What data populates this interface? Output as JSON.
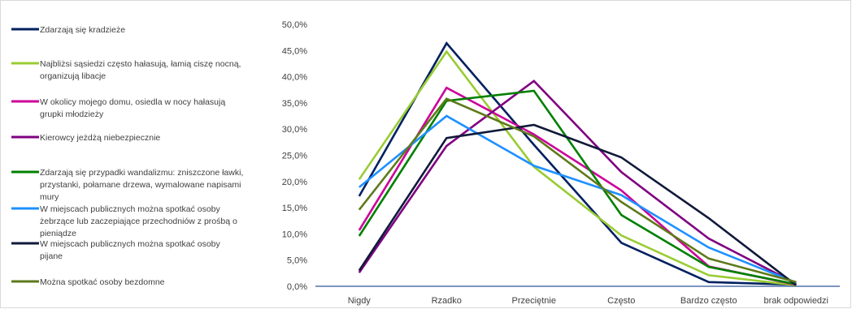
{
  "chart_data": {
    "type": "line",
    "categories": [
      "Nigdy",
      "Rzadko",
      "Przeciętnie",
      "Często",
      "Bardzo często",
      "brak odpowiedzi"
    ],
    "ylim": [
      0,
      50
    ],
    "yticks": [
      "0,0%",
      "5,0%",
      "10,0%",
      "15,0%",
      "20,0%",
      "25,0%",
      "30,0%",
      "35,0%",
      "40,0%",
      "45,0%",
      "50,0%"
    ],
    "grid": false,
    "legend_position": "left",
    "series": [
      {
        "name": "Zdarzają się kradzieże",
        "color": "#002060",
        "values": [
          17.2,
          46.4,
          27.0,
          8.3,
          0.8,
          0.3
        ]
      },
      {
        "name": "Najbliżsi sąsiedzi często hałasują, łamią ciszę nocną, organizują libacje",
        "color": "#99cc33",
        "values": [
          20.4,
          44.8,
          22.8,
          9.7,
          2.1,
          0.2
        ]
      },
      {
        "name": "W okolicy mojego domu, osiedla w nocy hałasują grupki młodzieży",
        "color": "#cc0099",
        "values": [
          10.7,
          37.9,
          29.0,
          18.3,
          3.8,
          0.3
        ]
      },
      {
        "name": "Kierowcy jeżdżą niebezpiecznie",
        "color": "#800080",
        "values": [
          2.6,
          26.8,
          39.2,
          21.8,
          9.1,
          0.5
        ]
      },
      {
        "name": "Zdarzają się przypadki wandalizmu: zniszczone ławki, przystanki, połamane drzewa, wymalowane napisami mury",
        "color": "#008000",
        "values": [
          9.6,
          35.4,
          37.3,
          13.6,
          3.7,
          0.4
        ]
      },
      {
        "name": "W miejscach publicznych można spotkać osoby żebrzące lub zaczepiające przechodniów z prośbą o pieniądze",
        "color": "#1e90ff",
        "values": [
          18.9,
          32.5,
          23.0,
          17.4,
          7.4,
          0.7
        ]
      },
      {
        "name": "W miejscach publicznych można spotkać osoby pijane",
        "color": "#0f1a3a",
        "values": [
          3.0,
          28.3,
          30.8,
          24.6,
          13.0,
          0.2
        ]
      },
      {
        "name": "Można spotkać osoby bezdomne",
        "color": "#5e7a1a",
        "values": [
          14.6,
          35.8,
          28.6,
          16.1,
          5.3,
          0.8
        ]
      }
    ],
    "legend_lines": [
      [
        "Zdarzają się kradzieże"
      ],
      [
        "Najbliżsi sąsiedzi często hałasują, łamią ciszę nocną,",
        "organizują libacje"
      ],
      [
        "W okolicy mojego domu, osiedla w nocy hałasują",
        "grupki młodzieży"
      ],
      [
        "Kierowcy jeżdżą niebezpiecznie"
      ],
      [
        "Zdarzają się przypadki wandalizmu: zniszczone ławki,",
        "przystanki, połamane drzewa, wymalowane napisami",
        "mury"
      ],
      [
        "W miejscach publicznych można spotkać osoby",
        "żebrzące lub zaczepiające przechodniów z prośbą o",
        "pieniądze"
      ],
      [
        "W miejscach publicznych można spotkać osoby",
        "pijane"
      ],
      [
        "Można spotkać osoby bezdomne"
      ]
    ]
  }
}
